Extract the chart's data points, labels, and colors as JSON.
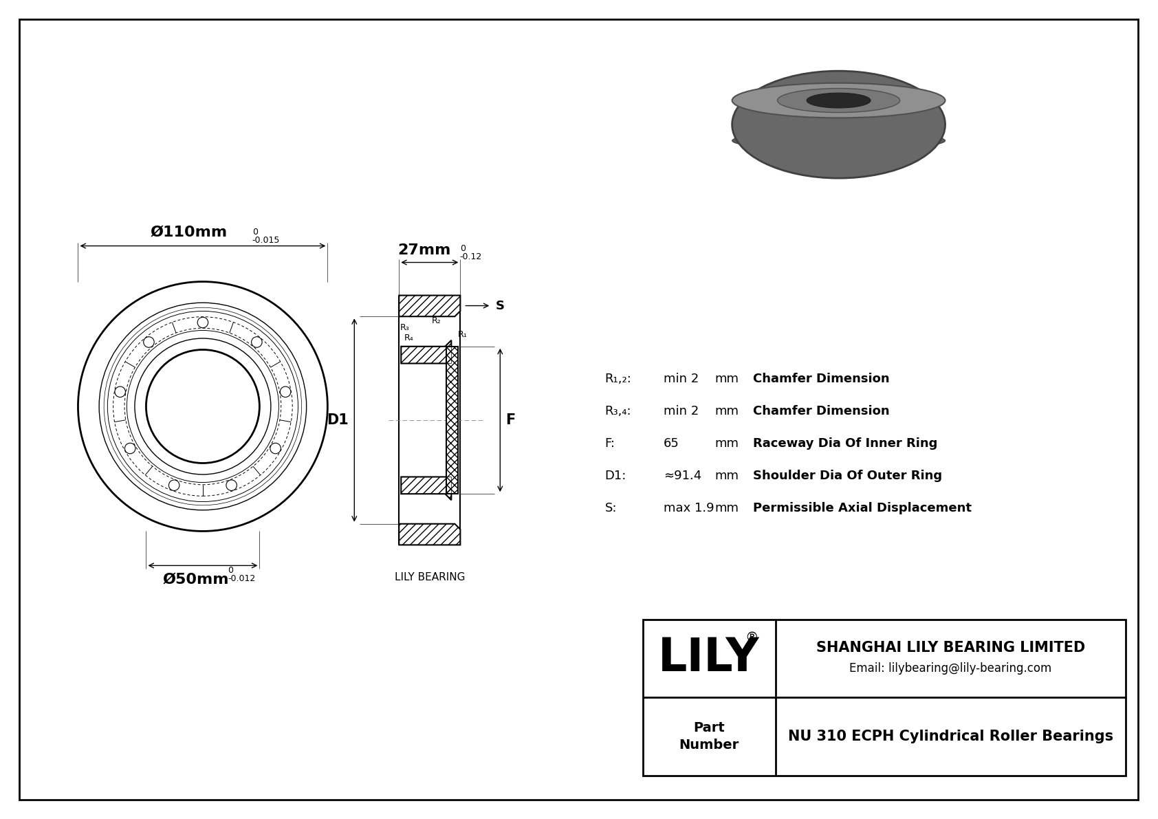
{
  "bg_color": "#FFFFFF",
  "line_color": "#000000",
  "company": "SHANGHAI LILY BEARING LIMITED",
  "email": "Email: lilybearing@lily-bearing.com",
  "lily_text": "LILY",
  "part_label": "Part\nNumber",
  "outer_dia_label": "Ø110mm",
  "outer_dia_tol_lower": "-0.015",
  "outer_dia_tol_upper": "0",
  "inner_dia_label": "Ø50mm",
  "inner_dia_tol_lower": "-0.012",
  "inner_dia_tol_upper": "0",
  "width_label": "27mm",
  "width_tol_lower": "-0.12",
  "width_tol_upper": "0",
  "D1_label": "D1",
  "F_label": "F",
  "S_label": "S",
  "R12_label": "R₁,₂:",
  "R34_label": "R₃,₄:",
  "R12_val": "min 2",
  "R34_val": "min 2",
  "R12_unit": "mm",
  "R34_unit": "mm",
  "R12_desc": "Chamfer Dimension",
  "R34_desc": "Chamfer Dimension",
  "F_val_label": "F:",
  "F_val": "65",
  "F_unit": "mm",
  "F_desc": "Raceway Dia Of Inner Ring",
  "D1_val_label": "D1:",
  "D1_val": "≈91.4",
  "D1_unit": "mm",
  "D1_desc": "Shoulder Dia Of Outer Ring",
  "S_val_label": "S:",
  "S_val": "max 1.9",
  "S_unit": "mm",
  "S_desc": "Permissible Axial Displacement",
  "lily_bearing_text": "LILY BEARING",
  "part_number": "NU 310 ECPH Cylindrical Roller Bearings"
}
